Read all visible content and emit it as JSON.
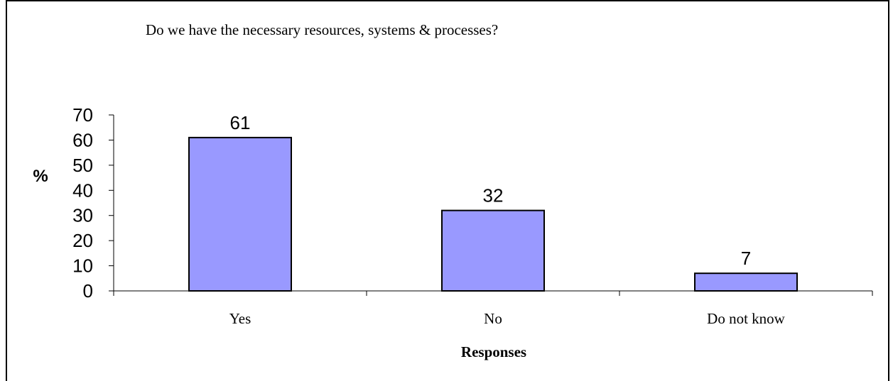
{
  "chart_data": {
    "type": "bar",
    "title": "Do we have the necessary resources, systems & processes?",
    "categories": [
      "Yes",
      "No",
      "Do not know"
    ],
    "values": [
      61,
      32,
      7
    ],
    "data_labels": [
      "61",
      "32",
      "7"
    ],
    "ylabel": "%",
    "xlabel": "Responses",
    "ylim": [
      0,
      70
    ],
    "yticks": [
      "0",
      "10",
      "20",
      "30",
      "40",
      "50",
      "60",
      "70"
    ],
    "bar_color": "#9999ff",
    "grid": false,
    "legend": "none"
  }
}
